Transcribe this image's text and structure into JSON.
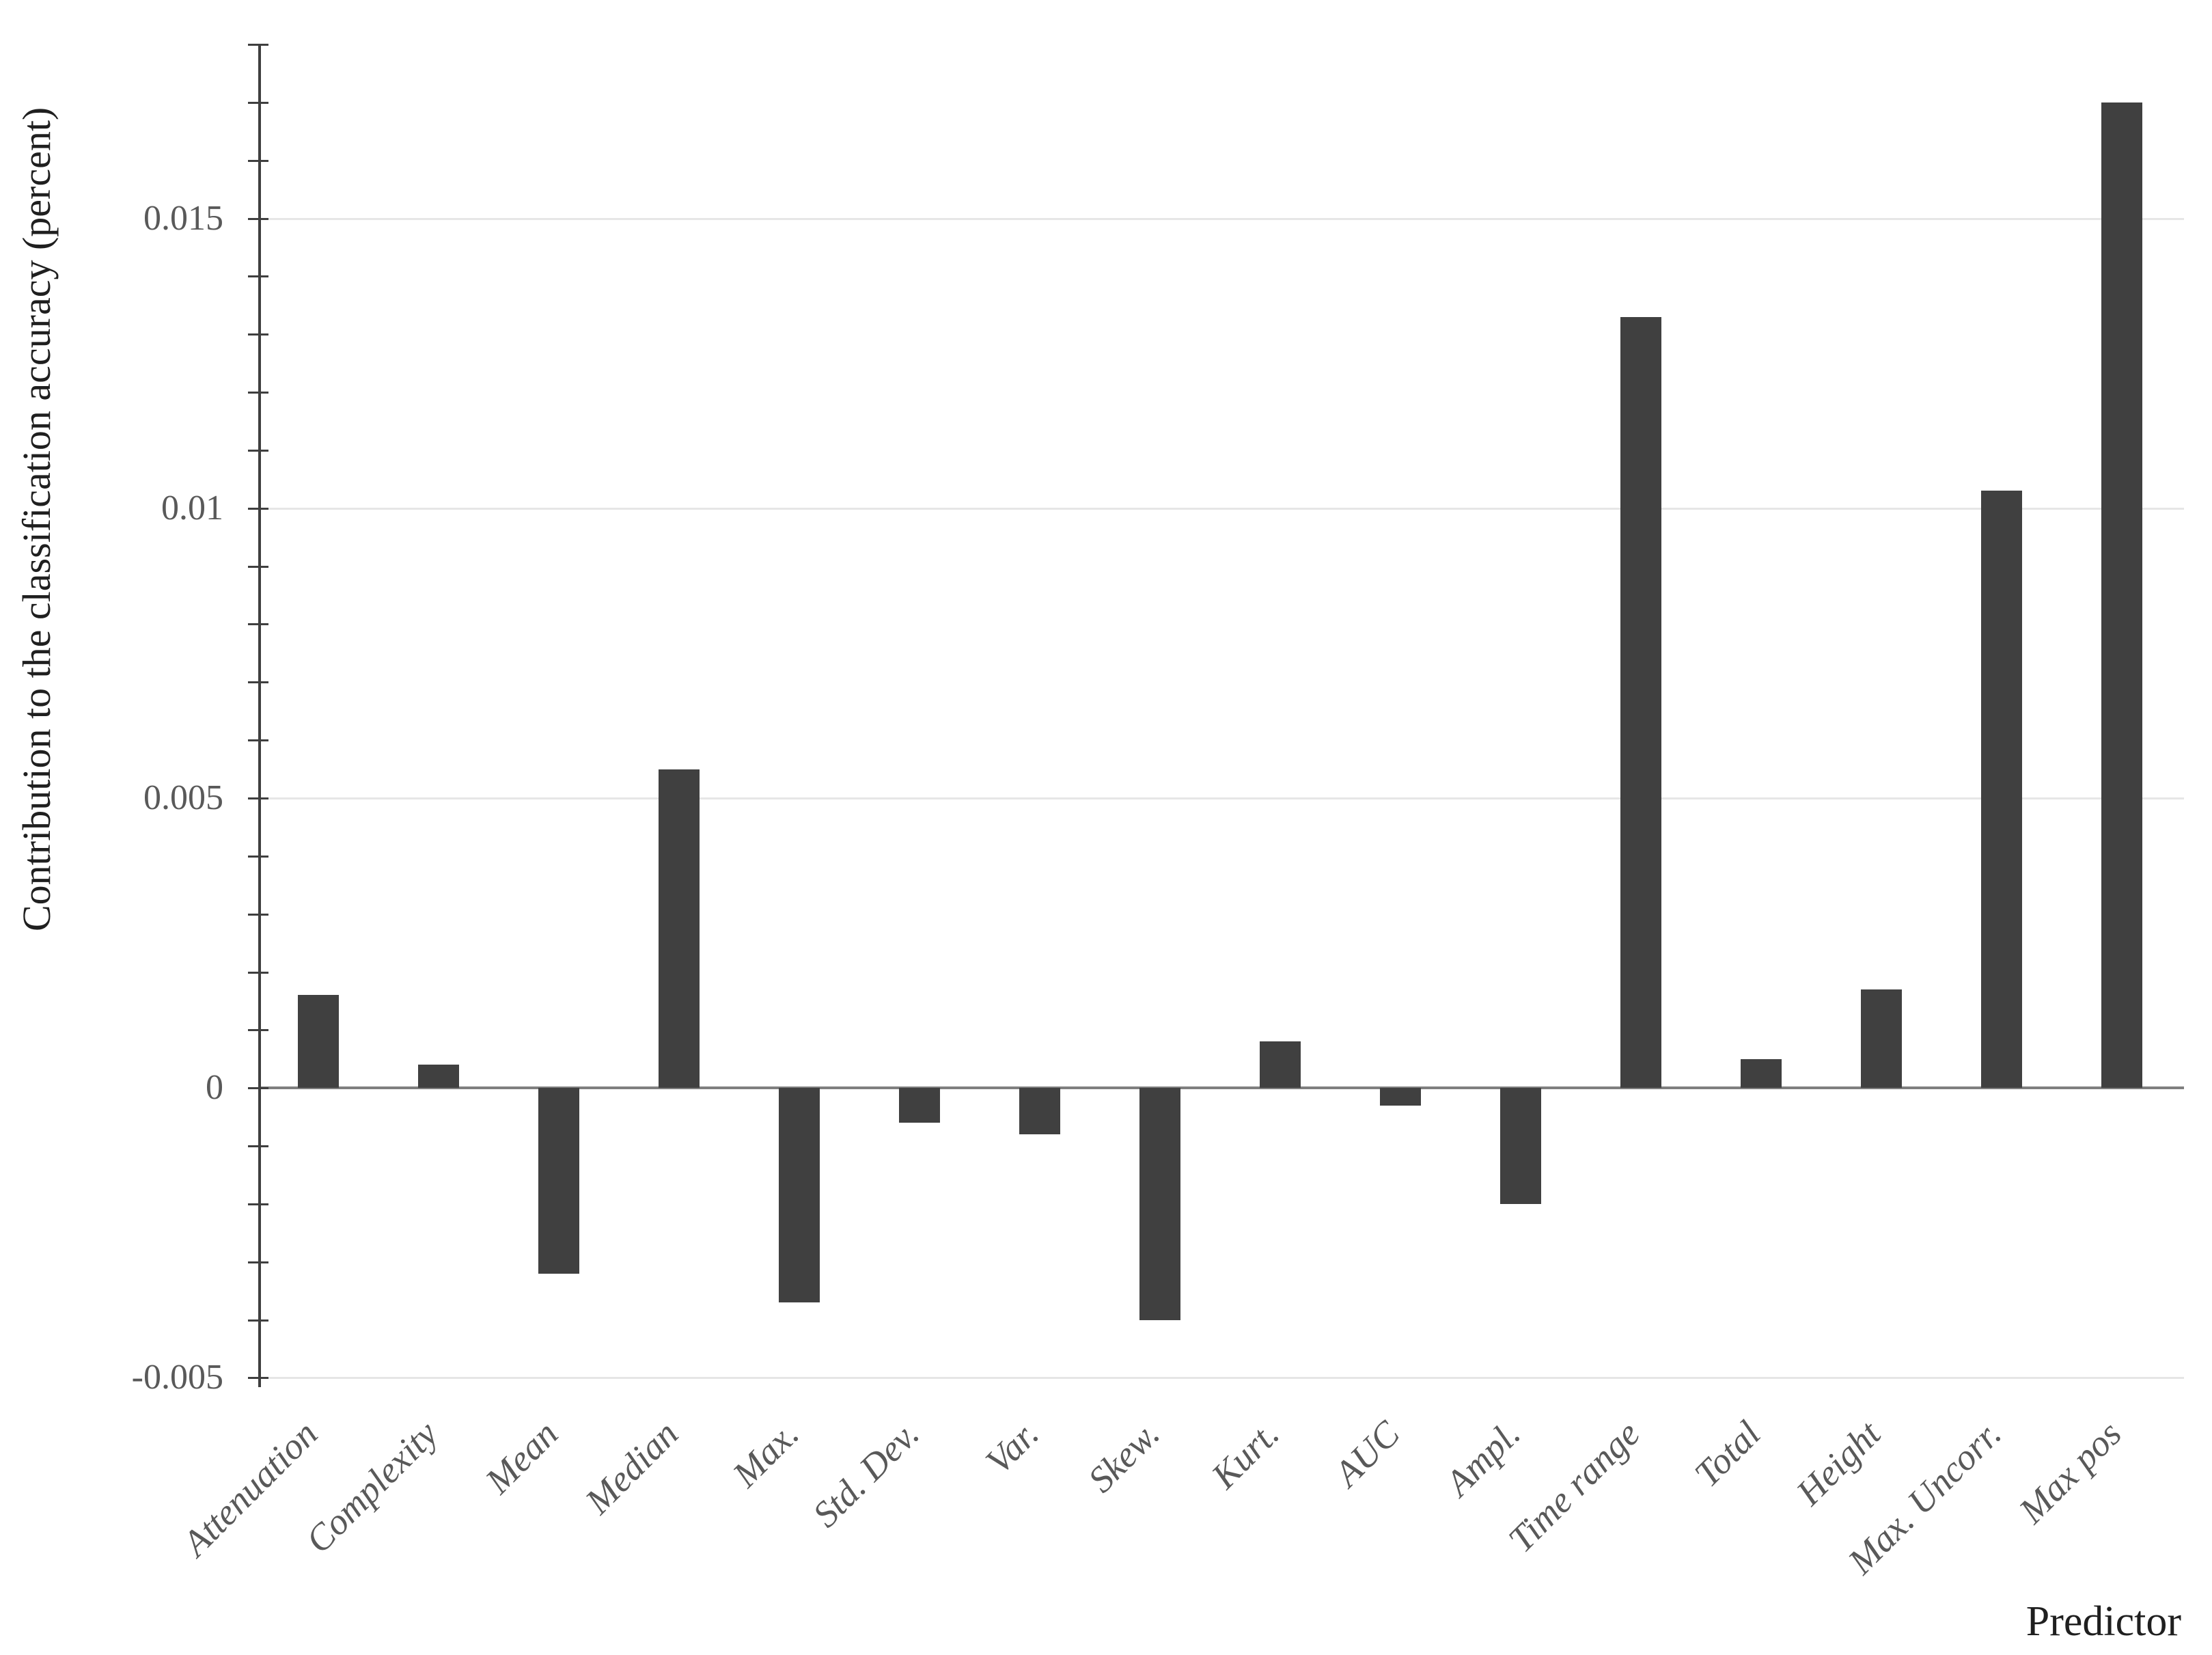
{
  "chart_data": {
    "type": "bar",
    "title": "",
    "xlabel": "Predictor",
    "ylabel": "Contribution to the classification accuracy (percent)",
    "categories": [
      "Attenuation",
      "Complexity",
      "Mean",
      "Median",
      "Max.",
      "Std. Dev.",
      "Var.",
      "Skew.",
      "Kurt.",
      "AUC",
      "Ampl.",
      "Time range",
      "Total",
      "Height",
      "Max. Uncorr.",
      "Max pos"
    ],
    "values": [
      0.0016,
      0.0004,
      -0.0032,
      0.0055,
      -0.0037,
      -0.0006,
      -0.0008,
      -0.004,
      0.0008,
      -0.0003,
      -0.002,
      0.0133,
      0.0005,
      0.0017,
      0.0103,
      0.017
    ],
    "ylim": [
      -0.00516,
      0.018
    ],
    "ytick_values": [
      -0.005,
      0,
      0.005,
      0.01,
      0.015
    ],
    "ytick_labels": [
      "-0.005",
      "0",
      "0.005",
      "0.01",
      "0.015"
    ],
    "gridline_values": [
      -0.005,
      0.005,
      0.01,
      0.015
    ],
    "minor_tick_step": 0.001,
    "grid_on": true,
    "legend": "none",
    "bar_color": "#404040",
    "grid_color": "#e6e6e6",
    "zero_line_color": "#7f7f7f",
    "axis_color": "#3f3f3f",
    "tick_label_color": "#595959",
    "axis_title_color": "#1f1f1f",
    "background_color": "#ffffff"
  }
}
